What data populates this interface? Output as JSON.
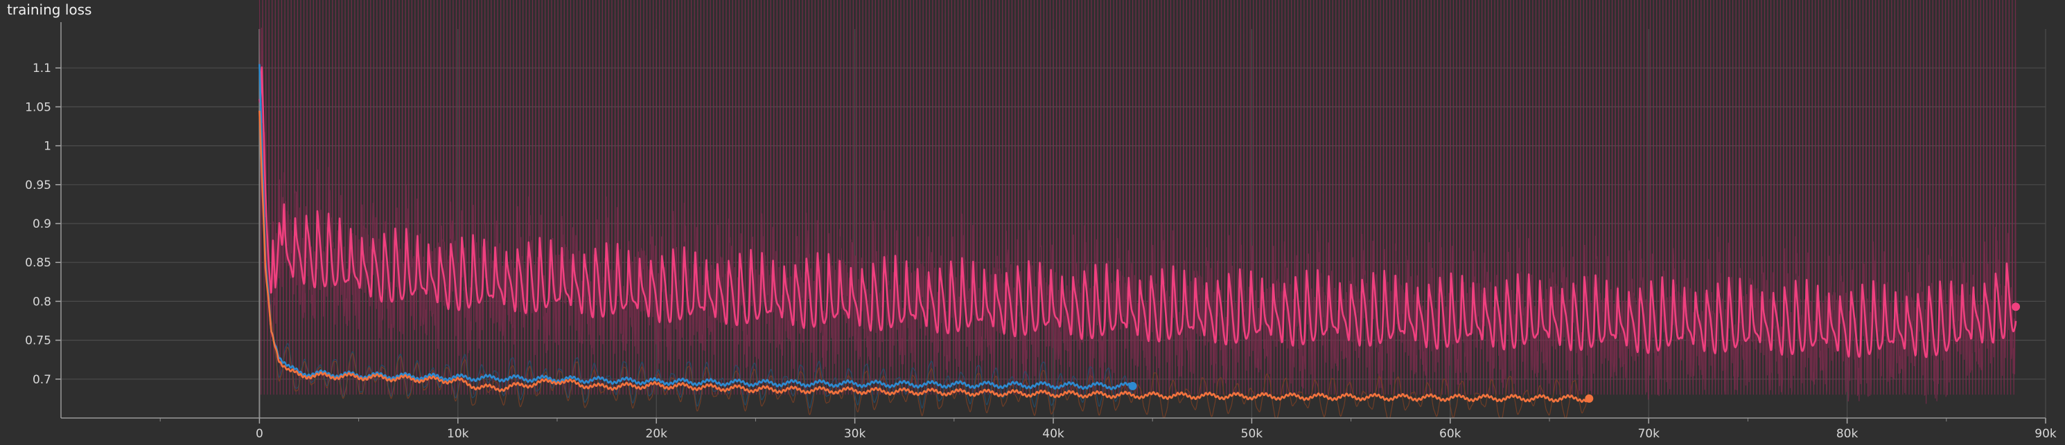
{
  "chart_data": {
    "type": "line",
    "title": "training loss",
    "xlabel": "",
    "ylabel": "",
    "xlim": [
      -10000,
      90000
    ],
    "ylim": [
      0.65,
      1.15
    ],
    "x_ticks": [
      0,
      10000,
      20000,
      30000,
      40000,
      50000,
      60000,
      70000,
      80000,
      90000
    ],
    "x_tick_labels": [
      "0",
      "10k",
      "20k",
      "30k",
      "40k",
      "50k",
      "60k",
      "70k",
      "80k",
      "90k"
    ],
    "y_ticks": [
      0.7,
      0.75,
      0.8,
      0.85,
      0.9,
      0.95,
      1,
      1.05,
      1.1
    ],
    "y_tick_labels": [
      "0.7",
      "0.75",
      "0.8",
      "0.85",
      "0.9",
      "0.95",
      "1",
      "1.05",
      "1.1"
    ],
    "grid": true,
    "legend": "none",
    "series": [
      {
        "color": "#f0407f",
        "raw_color": "#7a2c4c",
        "end_point": [
          88500,
          0.793
        ],
        "points": [
          [
            0,
            1.09
          ],
          [
            300,
            0.95
          ],
          [
            600,
            0.82
          ],
          [
            800,
            0.81
          ],
          [
            1000,
            0.92
          ],
          [
            1300,
            0.86
          ],
          [
            2500,
            0.86
          ],
          [
            5000,
            0.84
          ],
          [
            10000,
            0.825
          ],
          [
            15000,
            0.82
          ],
          [
            20000,
            0.81
          ],
          [
            25000,
            0.805
          ],
          [
            30000,
            0.8
          ],
          [
            35000,
            0.795
          ],
          [
            40000,
            0.79
          ],
          [
            45000,
            0.785
          ],
          [
            50000,
            0.78
          ],
          [
            55000,
            0.78
          ],
          [
            60000,
            0.775
          ],
          [
            65000,
            0.775
          ],
          [
            70000,
            0.77
          ],
          [
            75000,
            0.77
          ],
          [
            80000,
            0.765
          ],
          [
            85000,
            0.765
          ],
          [
            88500,
            0.793
          ]
        ]
      },
      {
        "color": "#2e8ad0",
        "raw_color": "#23506e",
        "end_point": [
          44000,
          0.691
        ],
        "points": [
          [
            0,
            1.105
          ],
          [
            300,
            0.85
          ],
          [
            600,
            0.76
          ],
          [
            1000,
            0.73
          ],
          [
            1500,
            0.715
          ],
          [
            2000,
            0.708
          ],
          [
            5000,
            0.705
          ],
          [
            10000,
            0.702
          ],
          [
            15000,
            0.7
          ],
          [
            20000,
            0.697
          ],
          [
            25000,
            0.695
          ],
          [
            30000,
            0.694
          ],
          [
            35000,
            0.693
          ],
          [
            40000,
            0.692
          ],
          [
            44000,
            0.691
          ]
        ]
      },
      {
        "color": "#f2733e",
        "raw_color": "#7a3f24",
        "end_point": [
          67000,
          0.675
        ],
        "points": [
          [
            0,
            1.045
          ],
          [
            300,
            0.84
          ],
          [
            600,
            0.76
          ],
          [
            1000,
            0.725
          ],
          [
            1500,
            0.71
          ],
          [
            2000,
            0.705
          ],
          [
            5000,
            0.703
          ],
          [
            10000,
            0.698
          ],
          [
            11000,
            0.69
          ],
          [
            12000,
            0.688
          ],
          [
            15000,
            0.698
          ],
          [
            17000,
            0.69
          ],
          [
            20000,
            0.692
          ],
          [
            25000,
            0.687
          ],
          [
            30000,
            0.685
          ],
          [
            35000,
            0.683
          ],
          [
            40000,
            0.681
          ],
          [
            45000,
            0.679
          ],
          [
            50000,
            0.678
          ],
          [
            55000,
            0.677
          ],
          [
            60000,
            0.676
          ],
          [
            67000,
            0.675
          ]
        ]
      }
    ]
  }
}
